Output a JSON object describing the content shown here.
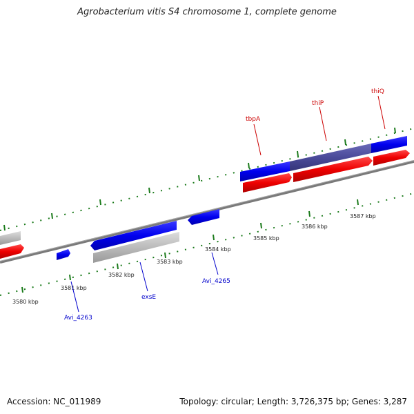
{
  "title": "Agrobacterium vitis S4 chromosome 1, complete genome",
  "footer": {
    "accession": "Accession: NC_011989",
    "summary": "Topology: circular; Length: 3,726,375 bp; Genes: 3,287"
  },
  "kbp_labels": [
    "3580 kbp",
    "3581 kbp",
    "3582 kbp",
    "3583 kbp",
    "3584 kbp",
    "3585 kbp",
    "3586 kbp",
    "3587 kbp"
  ],
  "gene_labels": {
    "tbpA": "tbpA",
    "thiP": "thiP",
    "thiQ": "thiQ",
    "Avi_4263": "Avi_4263",
    "exsE": "exsE",
    "Avi_4265": "Avi_4265"
  },
  "colors": {
    "forward_cds": "#0000ee",
    "reverse_cds": "#ee0000",
    "grey_feature": "#bbbbbb",
    "highlight_cds": "#4b4b9a",
    "backbone": "#888888",
    "tick": "#1a7a1a",
    "label_red": "#cc0000",
    "label_blue": "#0000cc"
  }
}
